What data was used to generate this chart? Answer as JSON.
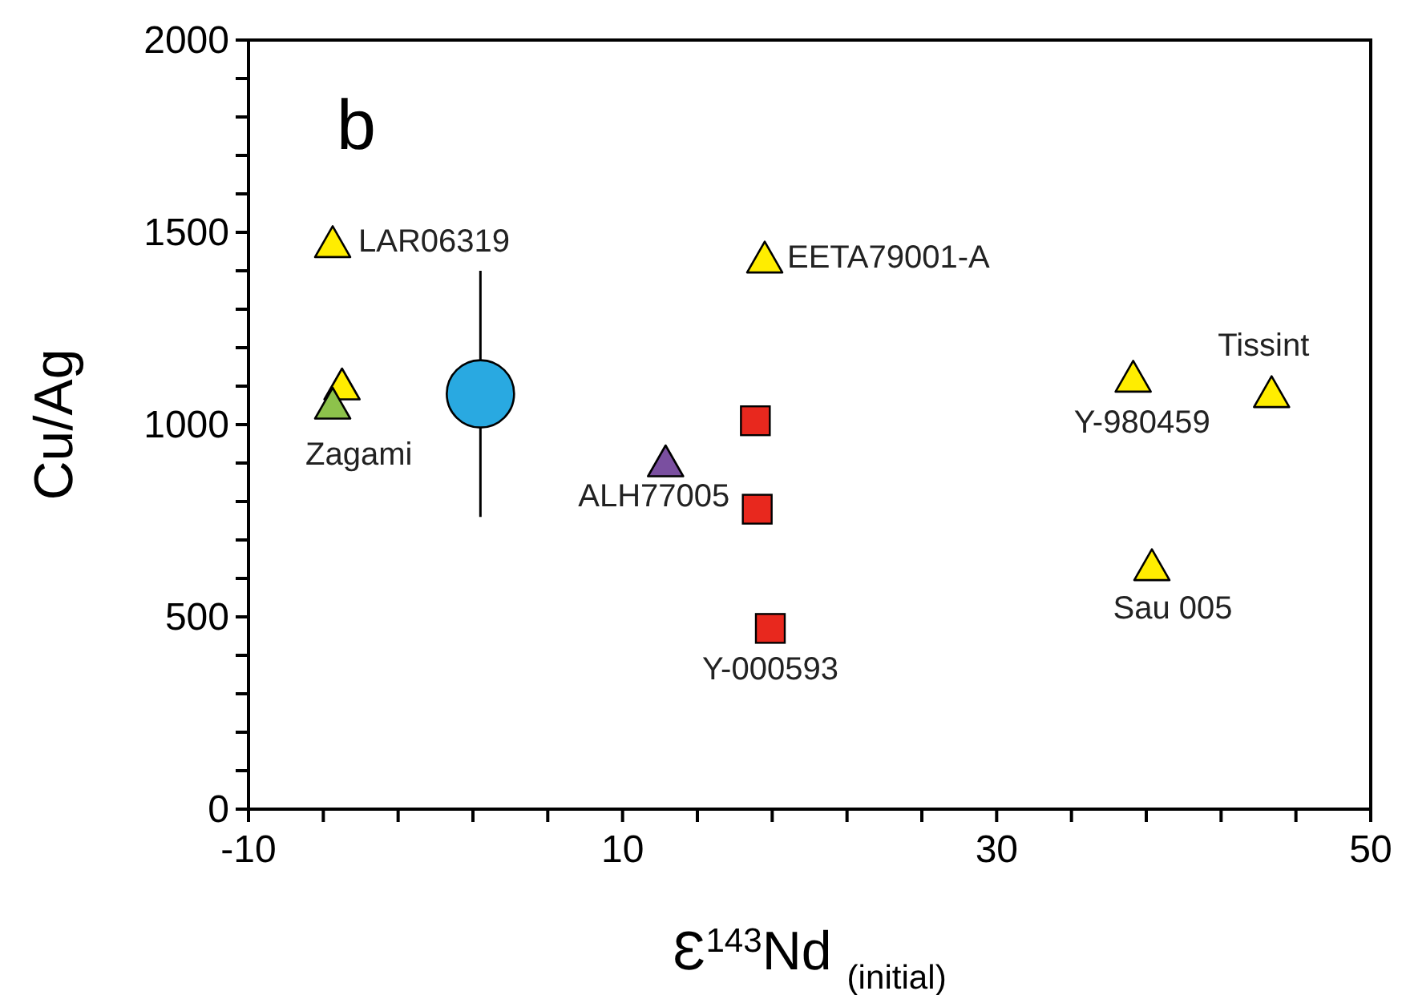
{
  "chart_data": {
    "type": "scatter",
    "xlabel": "Ɛ$^{143}$Nd $_{(initial)}$",
    "ylabel": "Cu/Ag",
    "xlim": [
      -10,
      50
    ],
    "xticks": [
      -10,
      {
        "value": -6,
        "label": null
      },
      {
        "value": -2,
        "label": null
      },
      {
        "value": 2,
        "label": null
      },
      {
        "value": 6,
        "label": null
      },
      10,
      {
        "value": 14,
        "label": null
      },
      {
        "value": 18,
        "label": null
      },
      {
        "value": 22,
        "label": null
      },
      {
        "value": 26,
        "label": null
      },
      30,
      {
        "value": 34,
        "label": null
      },
      {
        "value": 38,
        "label": null
      },
      {
        "value": 42,
        "label": null
      },
      {
        "value": 46,
        "label": null
      },
      50
    ],
    "ylim": [
      0,
      2000
    ],
    "yticks": [
      0,
      {
        "value": 100,
        "label": null
      },
      {
        "value": 200,
        "label": null
      },
      {
        "value": 300,
        "label": null
      },
      {
        "value": 400,
        "label": null
      },
      500,
      {
        "value": 600,
        "label": null
      },
      {
        "value": 700,
        "label": null
      },
      {
        "value": 800,
        "label": null
      },
      {
        "value": 900,
        "label": null
      },
      1000,
      {
        "value": 1100,
        "label": null
      },
      {
        "value": 1200,
        "label": null
      },
      {
        "value": 1300,
        "label": null
      },
      {
        "value": 1400,
        "label": null
      },
      1500,
      {
        "value": 1600,
        "label": null
      },
      {
        "value": 1700,
        "label": null
      },
      {
        "value": 1800,
        "label": null
      },
      {
        "value": 1900,
        "label": null
      },
      2000
    ],
    "grid": false,
    "legend": false,
    "series": [
      {
        "color": "#ffed00",
        "marker": "triangle",
        "x": [
          -5.5,
          -5.0,
          17.6,
          37.3,
          44.7,
          38.3
        ],
        "values": [
          1470,
          1100,
          1430,
          1120,
          1080,
          630
        ]
      },
      {
        "color": "#8dc24b",
        "marker": "triangle",
        "x": [
          -5.5
        ],
        "values": [
          1050
        ]
      },
      {
        "color": "#7a4fa0",
        "marker": "triangle",
        "x": [
          12.3
        ],
        "values": [
          900
        ]
      },
      {
        "color": "#e8281e",
        "marker": "square",
        "x": [
          17.1,
          17.2,
          17.9
        ],
        "values": [
          1010,
          780,
          470
        ]
      },
      {
        "color": "#29a9e1",
        "marker": "circle",
        "x": [
          2.4
        ],
        "values": [
          1080
        ],
        "errors": [
          [
            760,
            1400
          ]
        ]
      }
    ],
    "annotations": [
      "b",
      {
        "text": "LAR06319",
        "x": -5.5,
        "y": 1470
      },
      {
        "text": "Zagami",
        "x": -5.5,
        "y": 1050
      },
      {
        "text": "EETA79001-A",
        "x": 17.6,
        "y": 1430
      },
      {
        "text": "Y-980459",
        "x": 37.3,
        "y": 1120
      },
      {
        "text": "Tissint",
        "x": 44.7,
        "y": 1080
      },
      {
        "text": "Sau 005",
        "x": 38.3,
        "y": 630
      },
      {
        "text": "ALH77005",
        "x": 12.3,
        "y": 900
      },
      {
        "text": "Y-000593",
        "x": 17.9,
        "y": 470
      }
    ]
  }
}
